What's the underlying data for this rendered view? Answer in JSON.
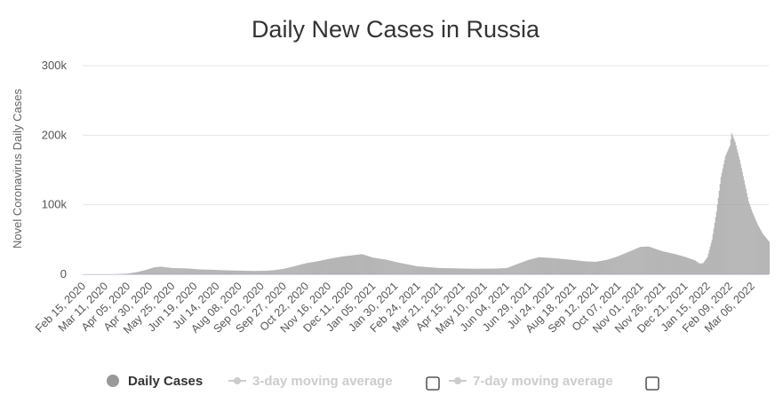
{
  "chart_data": {
    "type": "bar",
    "title": "Daily New Cases in Russia",
    "xlabel": "",
    "ylabel": "Novel Coronavirus Daily Cases",
    "ylim": [
      0,
      300000
    ],
    "y_ticks": [
      {
        "value": 0,
        "label": "0"
      },
      {
        "value": 100000,
        "label": "100k"
      },
      {
        "value": 200000,
        "label": "200k"
      },
      {
        "value": 300000,
        "label": "300k"
      }
    ],
    "grid": true,
    "x_range": [
      "2020-02-15",
      "2022-03-25"
    ],
    "x_tick_labels": [
      "Feb 15, 2020",
      "Mar 11, 2020",
      "Apr 05, 2020",
      "Apr 30, 2020",
      "May 25, 2020",
      "Jun 19, 2020",
      "Jul 14, 2020",
      "Aug 08, 2020",
      "Sep 02, 2020",
      "Sep 27, 2020",
      "Oct 22, 2020",
      "Nov 16, 2020",
      "Dec 11, 2020",
      "Jan 05, 2021",
      "Jan 30, 2021",
      "Feb 24, 2021",
      "Mar 21, 2021",
      "Apr 15, 2021",
      "May 10, 2021",
      "Jun 04, 2021",
      "Jun 29, 2021",
      "Jul 24, 2021",
      "Aug 18, 2021",
      "Sep 12, 2021",
      "Oct 07, 2021",
      "Nov 01, 2021",
      "Nov 26, 2021",
      "Dec 21, 2021",
      "Jan 15, 2022",
      "Feb 09, 2022",
      "Mar 06, 2022"
    ],
    "series": [
      {
        "name": "Daily Cases",
        "color": "#999999",
        "points": [
          [
            "2020-02-15",
            0
          ],
          [
            "2020-03-20",
            0
          ],
          [
            "2020-04-05",
            900
          ],
          [
            "2020-04-15",
            3000
          ],
          [
            "2020-04-25",
            6000
          ],
          [
            "2020-05-05",
            10000
          ],
          [
            "2020-05-12",
            11000
          ],
          [
            "2020-05-25",
            9000
          ],
          [
            "2020-06-10",
            8500
          ],
          [
            "2020-06-25",
            7000
          ],
          [
            "2020-07-10",
            6500
          ],
          [
            "2020-07-25",
            5700
          ],
          [
            "2020-08-10",
            5200
          ],
          [
            "2020-08-25",
            4800
          ],
          [
            "2020-09-05",
            5000
          ],
          [
            "2020-09-15",
            5700
          ],
          [
            "2020-09-27",
            7900
          ],
          [
            "2020-10-10",
            12000
          ],
          [
            "2020-10-22",
            16000
          ],
          [
            "2020-11-05",
            19000
          ],
          [
            "2020-11-16",
            22000
          ],
          [
            "2020-12-01",
            25500
          ],
          [
            "2020-12-11",
            27000
          ],
          [
            "2020-12-24",
            29000
          ],
          [
            "2021-01-05",
            24000
          ],
          [
            "2021-01-20",
            21000
          ],
          [
            "2021-01-30",
            18000
          ],
          [
            "2021-02-10",
            15000
          ],
          [
            "2021-02-24",
            11500
          ],
          [
            "2021-03-10",
            10000
          ],
          [
            "2021-03-21",
            9000
          ],
          [
            "2021-04-05",
            8600
          ],
          [
            "2021-04-15",
            8300
          ],
          [
            "2021-05-01",
            8000
          ],
          [
            "2021-05-20",
            8200
          ],
          [
            "2021-06-04",
            9000
          ],
          [
            "2021-06-14",
            14000
          ],
          [
            "2021-06-29",
            21000
          ],
          [
            "2021-07-10",
            24500
          ],
          [
            "2021-07-24",
            23500
          ],
          [
            "2021-08-18",
            20500
          ],
          [
            "2021-09-01",
            18500
          ],
          [
            "2021-09-12",
            18000
          ],
          [
            "2021-09-25",
            21000
          ],
          [
            "2021-10-07",
            26000
          ],
          [
            "2021-10-20",
            33000
          ],
          [
            "2021-11-01",
            39500
          ],
          [
            "2021-11-10",
            40000
          ],
          [
            "2021-11-26",
            33000
          ],
          [
            "2021-12-10",
            29000
          ],
          [
            "2021-12-21",
            25000
          ],
          [
            "2022-01-01",
            20000
          ],
          [
            "2022-01-06",
            15500
          ],
          [
            "2022-01-10",
            16000
          ],
          [
            "2022-01-15",
            25000
          ],
          [
            "2022-01-20",
            50000
          ],
          [
            "2022-01-25",
            90000
          ],
          [
            "2022-01-30",
            140000
          ],
          [
            "2022-02-04",
            170000
          ],
          [
            "2022-02-09",
            185000
          ],
          [
            "2022-02-11",
            203000
          ],
          [
            "2022-02-15",
            190000
          ],
          [
            "2022-02-20",
            165000
          ],
          [
            "2022-02-25",
            135000
          ],
          [
            "2022-03-02",
            105000
          ],
          [
            "2022-03-06",
            90000
          ],
          [
            "2022-03-12",
            72000
          ],
          [
            "2022-03-18",
            58000
          ],
          [
            "2022-03-25",
            47000
          ]
        ]
      }
    ],
    "legend": [
      {
        "label": "Daily Cases",
        "color": "#999999",
        "enabled": true
      },
      {
        "label": "3-day moving average",
        "color": "#cccccc",
        "enabled": false
      },
      {
        "label": "7-day moving average",
        "color": "#cccccc",
        "enabled": false
      }
    ],
    "legend_placement": "bottom"
  }
}
